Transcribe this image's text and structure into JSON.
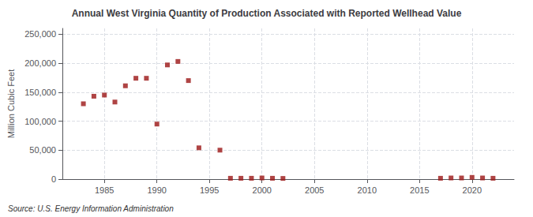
{
  "chart_data": {
    "type": "scatter",
    "title": "Annual West Virginia Quantity of Production Associated with Reported Wellhead Value",
    "ylabel": "Million Cubic Feet",
    "annotation": "Source: U.S. Energy Information Administration",
    "x": [
      1983,
      1984,
      1985,
      1986,
      1987,
      1988,
      1989,
      1990,
      1991,
      1992,
      1993,
      1994,
      1996,
      1997,
      1998,
      1999,
      2000,
      2001,
      2002,
      2017,
      2018,
      2019,
      2020,
      2021,
      2022
    ],
    "values": [
      130000,
      143000,
      145000,
      133000,
      161000,
      174000,
      174000,
      95000,
      197000,
      203000,
      170000,
      54000,
      50000,
      1500,
      1500,
      1500,
      2000,
      1500,
      1200,
      1500,
      2000,
      2000,
      3000,
      2000,
      1500
    ],
    "color": "#9b1515",
    "marker": "square",
    "xlim": [
      1981,
      2024
    ],
    "xticks": [
      1985,
      1990,
      1995,
      2000,
      2005,
      2010,
      2015,
      2020
    ],
    "ylim": [
      0,
      260000
    ],
    "yticks": [
      0,
      {
        "value": 50000,
        "label": "50,000"
      },
      {
        "value": 100000,
        "label": "100,000"
      },
      {
        "value": 150000,
        "label": "150,000"
      },
      {
        "value": 200000,
        "label": "200,000"
      },
      {
        "value": 250000,
        "label": "250,000"
      }
    ],
    "grid": true
  }
}
